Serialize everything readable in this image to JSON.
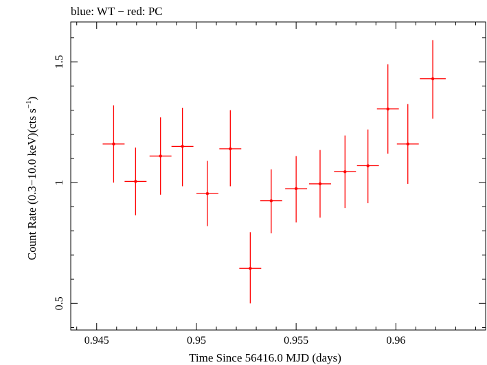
{
  "header_text": "blue: WT − red: PC",
  "chart_data": {
    "type": "scatter",
    "xlabel": "Time Since 56416.0 MJD (days)",
    "ylabel_main": "Count Rate (0.3−10.0 keV)(cts s",
    "ylabel_sup": "−1",
    "ylabel_close": ")",
    "xlim": [
      0.9437,
      0.9645
    ],
    "ylim": [
      0.39,
      1.665
    ],
    "xticks": [
      {
        "value": 0.945,
        "label": "0.945"
      },
      {
        "value": 0.95,
        "label": "0.95"
      },
      {
        "value": 0.955,
        "label": "0.955"
      },
      {
        "value": 0.96,
        "label": "0.96"
      }
    ],
    "yticks": [
      {
        "value": 0.5,
        "label": "0.5"
      },
      {
        "value": 1.0,
        "label": "1"
      },
      {
        "value": 1.5,
        "label": "1.5"
      }
    ],
    "series": [
      {
        "name": "PC",
        "color": "#ff0000",
        "points": [
          {
            "x": 0.94585,
            "xerr": 0.00055,
            "y": 1.16,
            "ylo": 1.0,
            "yhi": 1.32
          },
          {
            "x": 0.94695,
            "xerr": 0.00055,
            "y": 1.005,
            "ylo": 0.865,
            "yhi": 1.145
          },
          {
            "x": 0.9482,
            "xerr": 0.00055,
            "y": 1.11,
            "ylo": 0.95,
            "yhi": 1.27
          },
          {
            "x": 0.9493,
            "xerr": 0.00055,
            "y": 1.15,
            "ylo": 0.985,
            "yhi": 1.31
          },
          {
            "x": 0.95055,
            "xerr": 0.00055,
            "y": 0.955,
            "ylo": 0.82,
            "yhi": 1.09
          },
          {
            "x": 0.9517,
            "xerr": 0.00055,
            "y": 1.14,
            "ylo": 0.985,
            "yhi": 1.3
          },
          {
            "x": 0.9527,
            "xerr": 0.00055,
            "y": 0.645,
            "ylo": 0.5,
            "yhi": 0.795
          },
          {
            "x": 0.95375,
            "xerr": 0.00055,
            "y": 0.925,
            "ylo": 0.79,
            "yhi": 1.055
          },
          {
            "x": 0.955,
            "xerr": 0.00055,
            "y": 0.975,
            "ylo": 0.835,
            "yhi": 1.11
          },
          {
            "x": 0.9562,
            "xerr": 0.00055,
            "y": 0.995,
            "ylo": 0.855,
            "yhi": 1.135
          },
          {
            "x": 0.95745,
            "xerr": 0.00055,
            "y": 1.045,
            "ylo": 0.895,
            "yhi": 1.195
          },
          {
            "x": 0.9586,
            "xerr": 0.00055,
            "y": 1.07,
            "ylo": 0.915,
            "yhi": 1.22
          },
          {
            "x": 0.9596,
            "xerr": 0.00055,
            "y": 1.305,
            "ylo": 1.12,
            "yhi": 1.49
          },
          {
            "x": 0.9606,
            "xerr": 0.00055,
            "y": 1.16,
            "ylo": 0.995,
            "yhi": 1.325
          },
          {
            "x": 0.96185,
            "xerr": 0.00065,
            "y": 1.43,
            "ylo": 1.265,
            "yhi": 1.59
          }
        ]
      }
    ]
  }
}
